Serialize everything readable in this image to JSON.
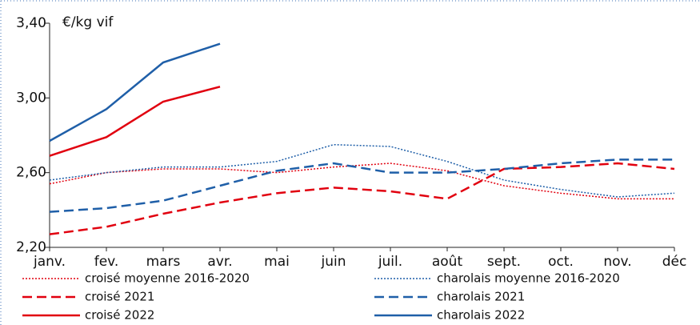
{
  "chart_data": {
    "type": "line",
    "y_label": "€/kg vif",
    "categories": [
      "janv.",
      "fev.",
      "mars",
      "avr.",
      "mai",
      "juin",
      "juil.",
      "août",
      "sept.",
      "oct.",
      "nov.",
      "déc"
    ],
    "ylim": [
      2.2,
      3.4
    ],
    "yticks": [
      {
        "value": 2.2,
        "label": "2,20"
      },
      {
        "value": 2.6,
        "label": "2,60"
      },
      {
        "value": 3.0,
        "label": "3,00"
      },
      {
        "value": 3.4,
        "label": "3,40"
      }
    ],
    "series": [
      {
        "name": "croisé moyenne 2016-2020",
        "color": "#e1000f",
        "dash": "dotted",
        "values": [
          2.54,
          2.6,
          2.62,
          2.62,
          2.6,
          2.63,
          2.65,
          2.61,
          2.53,
          2.49,
          2.46,
          2.46
        ]
      },
      {
        "name": "charolais moyenne 2016-2020",
        "color": "#1f5fa8",
        "dash": "dotted",
        "values": [
          2.56,
          2.6,
          2.63,
          2.63,
          2.66,
          2.75,
          2.74,
          2.66,
          2.56,
          2.51,
          2.47,
          2.49
        ]
      },
      {
        "name": "croisé 2021",
        "color": "#e1000f",
        "dash": "dashed",
        "values": [
          2.27,
          2.31,
          2.38,
          2.44,
          2.49,
          2.52,
          2.5,
          2.46,
          2.62,
          2.63,
          2.65,
          2.62
        ]
      },
      {
        "name": "charolais 2021",
        "color": "#1f5fa8",
        "dash": "dashed",
        "values": [
          2.39,
          2.41,
          2.45,
          2.53,
          2.61,
          2.65,
          2.6,
          2.6,
          2.62,
          2.65,
          2.67,
          2.67
        ]
      },
      {
        "name": "croisé 2022",
        "color": "#e1000f",
        "dash": "solid",
        "values": [
          2.69,
          2.79,
          2.98,
          3.06,
          null,
          null,
          null,
          null,
          null,
          null,
          null,
          null
        ]
      },
      {
        "name": "charolais 2022",
        "color": "#1f5fa8",
        "dash": "solid",
        "values": [
          2.77,
          2.94,
          3.19,
          3.29,
          null,
          null,
          null,
          null,
          null,
          null,
          null,
          null
        ]
      }
    ]
  }
}
